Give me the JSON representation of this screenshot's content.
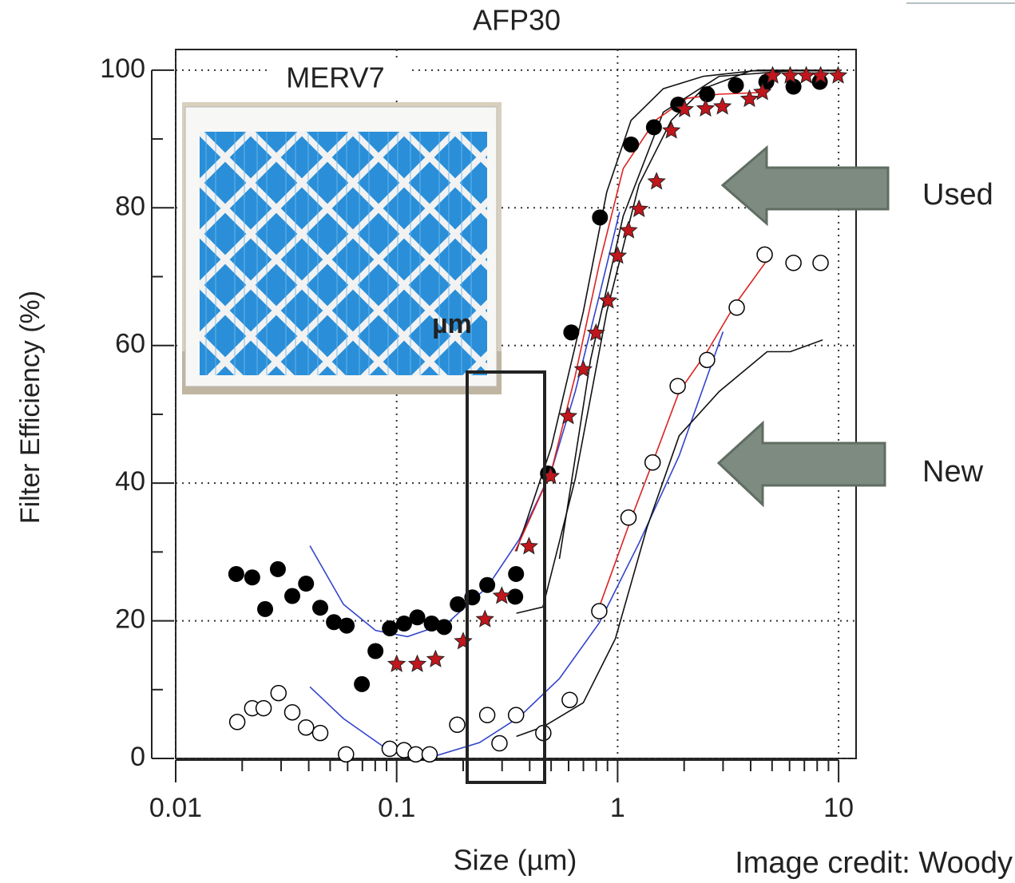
{
  "chart_data": {
    "type": "scatter",
    "title": "AFP30",
    "x_label": "Size (µm)",
    "y_label": "Filter Efficiency (%)",
    "annotations": {
      "filter": "MERV7",
      "unit": "µm",
      "used": "Used",
      "new": "New",
      "credit": "Image credit: Woody"
    },
    "xscale": "log",
    "xlim": [
      0.01,
      12
    ],
    "ylim": [
      0,
      103
    ],
    "xticks": [
      0.01,
      0.1,
      1,
      10
    ],
    "yticks": [
      0,
      20,
      40,
      60,
      80,
      100
    ],
    "xminorticks": [
      0.02,
      0.03,
      0.04,
      0.05,
      0.06,
      0.07,
      0.08,
      0.09,
      0.2,
      0.3,
      0.4,
      0.5,
      0.6,
      0.7,
      0.8,
      0.9,
      2,
      3,
      4,
      5,
      6,
      7,
      8,
      9
    ],
    "yminorticks": [
      10,
      30,
      50,
      70,
      90
    ],
    "grid": true,
    "series": [
      {
        "kind": "line",
        "color": "#3344cc",
        "x": [
          0.0405,
          0.0574,
          0.0802,
          0.112,
          0.17,
          0.257,
          0.358,
          0.501,
          0.643,
          0.826,
          1.02
        ],
        "values": [
          30.9,
          22.4,
          18.6,
          17.7,
          19.7,
          24.9,
          31.8,
          41.7,
          53.3,
          67.2,
          79.4
        ]
      },
      {
        "kind": "line",
        "color": "#3344cc",
        "x": [
          0.0405,
          0.0574,
          0.0872,
          0.144,
          0.237,
          0.358,
          0.545,
          0.826,
          1.25,
          1.9,
          3.0
        ],
        "values": [
          10.4,
          5.8,
          1.7,
          0.2,
          2.3,
          6.0,
          11.6,
          19.7,
          31.3,
          44.0,
          62.0
        ]
      },
      {
        "kind": "line",
        "color": "#111111",
        "x": [
          0.348,
          0.501,
          0.699,
          0.893,
          1.15,
          1.61,
          2.44,
          4.37,
          9.9
        ],
        "values": [
          30.1,
          45.2,
          64.9,
          82.3,
          92.7,
          97.3,
          99.1,
          100,
          100
        ]
      },
      {
        "kind": "line",
        "color": "#111111",
        "x": [
          0.348,
          0.459,
          0.643,
          0.893,
          1.25,
          1.75,
          2.44,
          4.0,
          9.9
        ],
        "values": [
          21.1,
          22.0,
          40.6,
          64.9,
          83.4,
          92.7,
          97.3,
          99.9,
          99.9
        ]
      },
      {
        "kind": "line",
        "color": "#111111",
        "x": [
          0.545,
          0.754,
          1.06,
          1.61,
          2.88,
          6.6
        ],
        "values": [
          29.0,
          57.9,
          78.8,
          93.9,
          99.1,
          100
        ]
      },
      {
        "kind": "line",
        "color": "#111111",
        "x": [
          0.348,
          0.461,
          0.699,
          0.977,
          1.36,
          1.9,
          2.88,
          4.75,
          6.05,
          8.47
        ],
        "values": [
          3.2,
          4.6,
          8.1,
          17.4,
          33.6,
          46.9,
          53.3,
          59.1,
          59.1,
          60.8
        ]
      },
      {
        "kind": "line",
        "color": "#dd2222",
        "x": [
          0.344,
          0.501,
          0.643,
          0.826,
          1.06,
          1.48,
          2.06,
          2.88,
          4.75
        ],
        "values": [
          30.1,
          41.7,
          55.6,
          71.8,
          85.7,
          92.7,
          95.9,
          96.5,
          96.8
        ]
      },
      {
        "kind": "line",
        "color": "#dd2222",
        "x": [
          0.826,
          1.15,
          1.48,
          1.9,
          2.54,
          3.41,
          4.75
        ],
        "values": [
          22.0,
          34.8,
          44.0,
          53.3,
          59.1,
          66.0,
          72.4
        ]
      },
      {
        "kind": "points",
        "marker": "circle-filled",
        "color": "#000000",
        "x": [
          0.0188,
          0.0222,
          0.0254,
          0.029,
          0.0337,
          0.0389,
          0.0451,
          0.052,
          0.0594,
          0.0696,
          0.0802,
          0.0932,
          0.108,
          0.124,
          0.144,
          0.164,
          0.189,
          0.22,
          0.257,
          0.347,
          0.344,
          0.484,
          0.617,
          0.832,
          1.15,
          1.46,
          1.88,
          2.54,
          3.43,
          4.71,
          6.25,
          8.22
        ],
        "values": [
          26.8,
          26.3,
          21.7,
          27.5,
          23.6,
          25.4,
          21.9,
          19.8,
          19.3,
          10.8,
          15.6,
          18.9,
          19.6,
          20.5,
          19.6,
          19.1,
          22.4,
          23.4,
          25.2,
          26.8,
          23.5,
          41.4,
          61.9,
          78.6,
          89.2,
          91.7,
          95.0,
          96.5,
          97.8,
          98.3,
          97.6,
          98.3
        ]
      },
      {
        "kind": "points",
        "marker": "star",
        "color": "#c0161c",
        "x": [
          0.1,
          0.124,
          0.15,
          0.2,
          0.251,
          0.299,
          0.397,
          0.497,
          0.597,
          0.699,
          0.798,
          0.905,
          1.0,
          1.12,
          1.25,
          1.5,
          1.75,
          2.01,
          2.5,
          2.98,
          3.95,
          4.52,
          5.03,
          6.04,
          7.14,
          8.29,
          9.95
        ],
        "values": [
          13.7,
          13.7,
          14.4,
          17.0,
          20.2,
          23.6,
          30.8,
          41.0,
          49.7,
          56.5,
          61.8,
          66.5,
          73.0,
          76.7,
          79.8,
          83.8,
          91.2,
          94.3,
          94.4,
          94.7,
          95.8,
          96.8,
          99.2,
          99.2,
          99.2,
          99.2,
          99.2
        ]
      },
      {
        "kind": "points",
        "marker": "circle-open",
        "color": "#000000",
        "x": [
          0.019,
          0.0222,
          0.025,
          0.0292,
          0.0337,
          0.0389,
          0.0451,
          0.059,
          0.093,
          0.108,
          0.122,
          0.141,
          0.188,
          0.257,
          0.292,
          0.347,
          0.461,
          0.607,
          0.826,
          1.12,
          1.44,
          1.87,
          2.54,
          3.46,
          4.63,
          6.25,
          8.29
        ],
        "values": [
          5.3,
          7.3,
          7.3,
          9.5,
          6.7,
          4.5,
          3.7,
          0.6,
          1.4,
          1.2,
          0.6,
          0.6,
          4.9,
          6.3,
          2.2,
          6.3,
          3.7,
          8.5,
          21.4,
          35.0,
          43.0,
          54.1,
          57.9,
          65.5,
          73.2,
          72.0,
          72.0
        ]
      }
    ]
  }
}
